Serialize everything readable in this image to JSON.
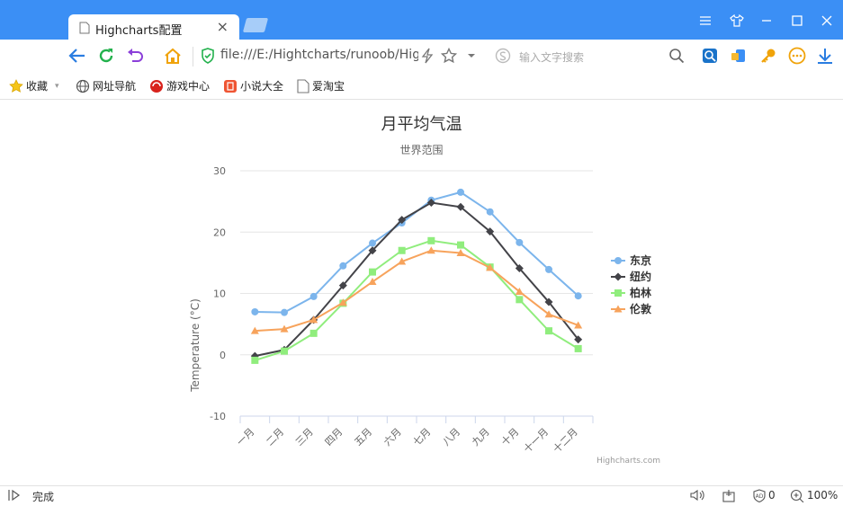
{
  "browser": {
    "tab_title": "Highcharts配置",
    "url": "file:///E:/Hightcharts/runoob/Hig",
    "search_placeholder": "输入文字搜索",
    "accent_color": "#3b8ff5"
  },
  "bookmarks": [
    {
      "label": "收藏",
      "icon": "star-icon"
    },
    {
      "label": "网址导航",
      "icon": "globe-icon"
    },
    {
      "label": "游戏中心",
      "icon": "game-icon"
    },
    {
      "label": "小说大全",
      "icon": "book-icon"
    },
    {
      "label": "爱淘宝",
      "icon": "page-icon"
    }
  ],
  "status": {
    "text": "完成",
    "count": "0",
    "zoom": "100%"
  },
  "chart_data": {
    "type": "line",
    "title": "月平均气温",
    "subtitle": "世界范围",
    "ylabel": "Temperature (°C)",
    "xlabel": "",
    "credits": "Highcharts.com",
    "categories": [
      "一月",
      "二月",
      "三月",
      "四月",
      "五月",
      "六月",
      "七月",
      "八月",
      "九月",
      "十月",
      "十一月",
      "十二月"
    ],
    "ylim": [
      -10,
      30
    ],
    "yticks": [
      -10,
      0,
      10,
      20,
      30
    ],
    "grid": true,
    "legend_position": "right",
    "series": [
      {
        "name": "东京",
        "color": "#7cb5ec",
        "marker": "circle",
        "values": [
          7.0,
          6.9,
          9.5,
          14.5,
          18.2,
          21.5,
          25.2,
          26.5,
          23.3,
          18.3,
          13.9,
          9.6
        ]
      },
      {
        "name": "纽约",
        "color": "#434348",
        "marker": "diamond",
        "values": [
          -0.2,
          0.8,
          5.7,
          11.3,
          17.0,
          22.0,
          24.8,
          24.1,
          20.1,
          14.1,
          8.6,
          2.5
        ]
      },
      {
        "name": "柏林",
        "color": "#90ed7d",
        "marker": "square",
        "values": [
          -0.9,
          0.6,
          3.5,
          8.4,
          13.5,
          17.0,
          18.6,
          17.9,
          14.3,
          9.0,
          3.9,
          1.0
        ]
      },
      {
        "name": "伦敦",
        "color": "#f7a35c",
        "marker": "triangle",
        "values": [
          3.9,
          4.2,
          5.7,
          8.5,
          11.9,
          15.2,
          17.0,
          16.6,
          14.2,
          10.3,
          6.6,
          4.8
        ]
      }
    ]
  }
}
